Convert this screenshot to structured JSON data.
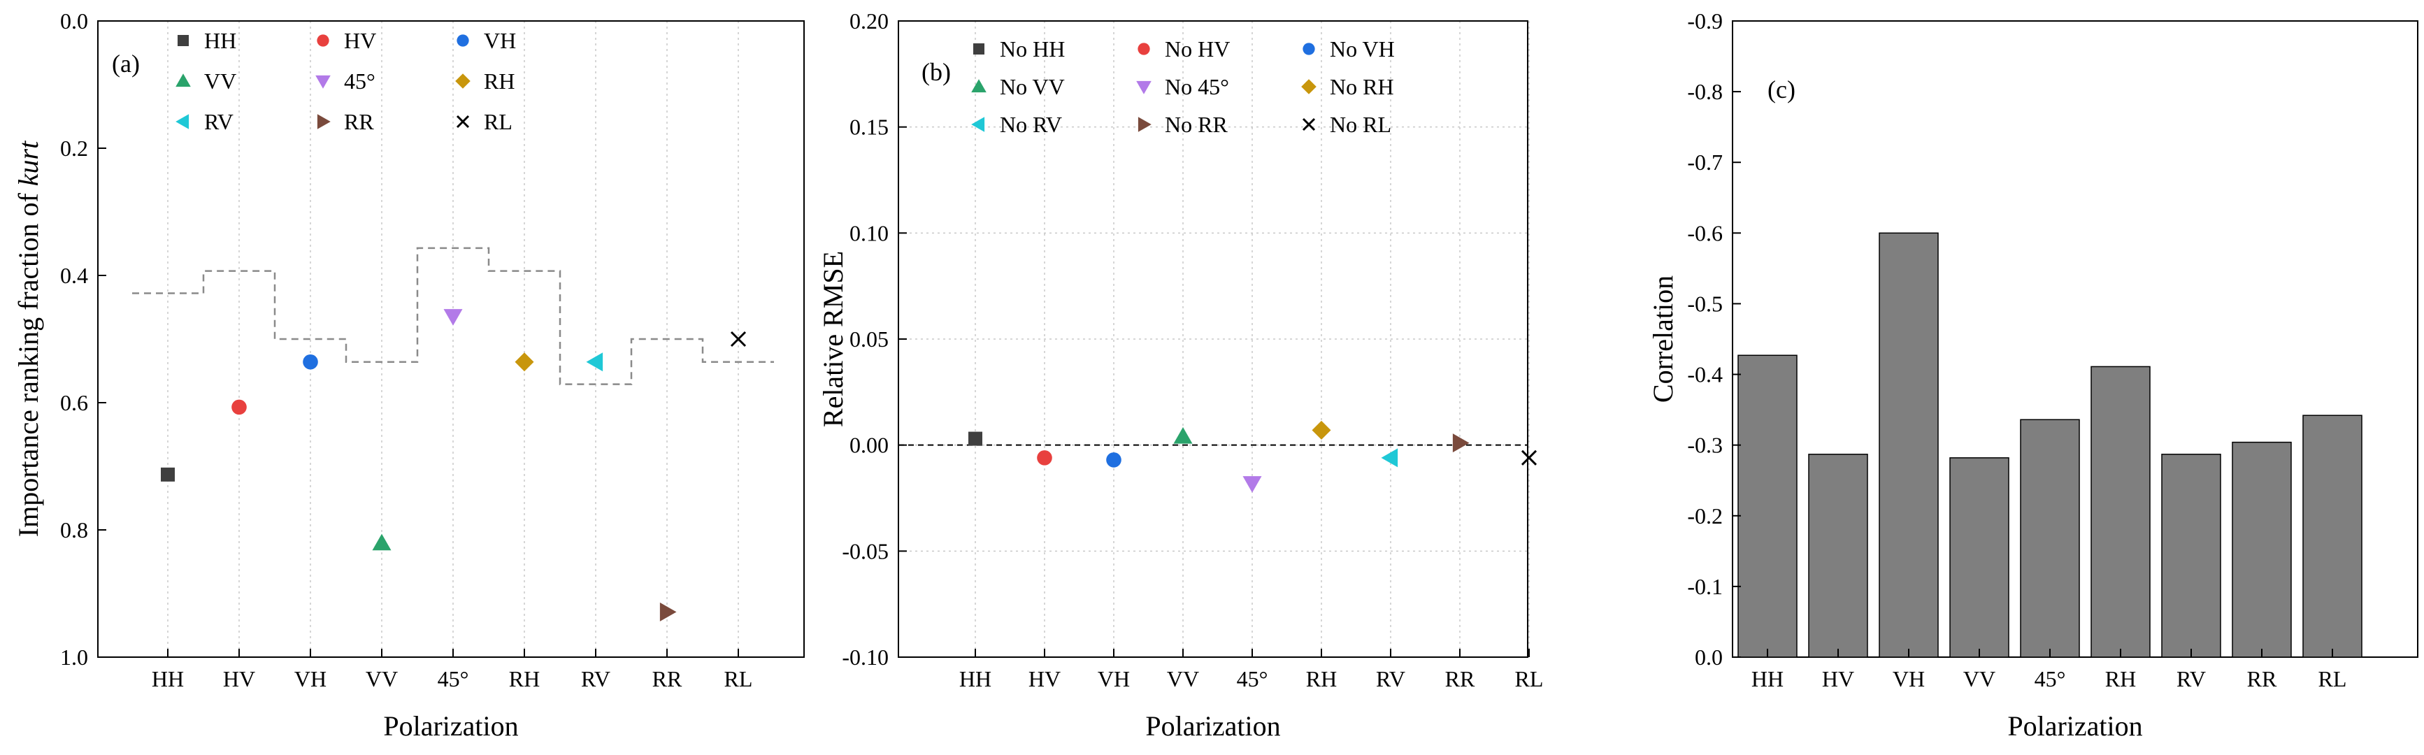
{
  "chart_data": [
    {
      "type": "scatter",
      "panel_label": "(a)",
      "xlabel": "Polarization",
      "ylabel_prefix": "Importance ranking fraction of ",
      "ylabel_italic": "kurt",
      "ylim": [
        0,
        1
      ],
      "y_inverted": true,
      "yticks": [
        "0.0",
        "0.2",
        "0.4",
        "0.6",
        "0.8",
        "1.0"
      ],
      "categories": [
        "HH",
        "HV",
        "VH",
        "VV",
        "45°",
        "RH",
        "RV",
        "RR",
        "RL"
      ],
      "points": [
        {
          "label": "HH",
          "value": 0.713,
          "color": "#3f3f3f",
          "marker": "square"
        },
        {
          "label": "HV",
          "value": 0.607,
          "color": "#e8403e",
          "marker": "circle"
        },
        {
          "label": "VH",
          "value": 0.536,
          "color": "#1f6fe0",
          "marker": "circle"
        },
        {
          "label": "VV",
          "value": 0.821,
          "color": "#2aa36b",
          "marker": "triangle-up"
        },
        {
          "label": "45°",
          "value": 0.464,
          "color": "#b27ae8",
          "marker": "triangle-down"
        },
        {
          "label": "RH",
          "value": 0.536,
          "color": "#c8960c",
          "marker": "diamond"
        },
        {
          "label": "RV",
          "value": 0.536,
          "color": "#1fc8d6",
          "marker": "triangle-left"
        },
        {
          "label": "RR",
          "value": 0.929,
          "color": "#7a4a3c",
          "marker": "triangle-right"
        },
        {
          "label": "RL",
          "value": 0.5,
          "color": "#000000",
          "marker": "x"
        }
      ],
      "step_line": [
        0.428,
        0.393,
        0.5,
        0.536,
        0.357,
        0.393,
        0.571,
        0.5,
        0.536
      ]
    },
    {
      "type": "scatter",
      "panel_label": "(b)",
      "xlabel": "Polarization",
      "ylabel": "Relative RMSE",
      "ylim": [
        -0.1,
        0.2
      ],
      "yticks": [
        "-0.10",
        "-0.05",
        "0.00",
        "0.05",
        "0.10",
        "0.15",
        "0.20"
      ],
      "reference_line": 0,
      "categories": [
        "HH",
        "HV",
        "VH",
        "VV",
        "45°",
        "RH",
        "RV",
        "RR",
        "RL"
      ],
      "points": [
        {
          "label": "No HH",
          "value": 0.003,
          "color": "#3f3f3f",
          "marker": "square"
        },
        {
          "label": "No HV",
          "value": -0.006,
          "color": "#e8403e",
          "marker": "circle"
        },
        {
          "label": "No VH",
          "value": -0.007,
          "color": "#1f6fe0",
          "marker": "circle"
        },
        {
          "label": "No VV",
          "value": 0.004,
          "color": "#2aa36b",
          "marker": "triangle-up"
        },
        {
          "label": "No 45°",
          "value": -0.018,
          "color": "#b27ae8",
          "marker": "triangle-down"
        },
        {
          "label": "No RH",
          "value": 0.007,
          "color": "#c8960c",
          "marker": "diamond"
        },
        {
          "label": "No RV",
          "value": -0.006,
          "color": "#1fc8d6",
          "marker": "triangle-left"
        },
        {
          "label": "No RR",
          "value": 0.001,
          "color": "#7a4a3c",
          "marker": "triangle-right"
        },
        {
          "label": "No RL",
          "value": -0.006,
          "color": "#000000",
          "marker": "x"
        }
      ]
    },
    {
      "type": "bar",
      "panel_label": "(c)",
      "xlabel": "Polarization",
      "ylabel": "Correlation",
      "ylim": [
        0,
        -0.9
      ],
      "yticks": [
        "0.0",
        "-0.1",
        "-0.2",
        "-0.3",
        "-0.4",
        "-0.5",
        "-0.6",
        "-0.7",
        "-0.8",
        "-0.9"
      ],
      "categories": [
        "HH",
        "HV",
        "VH",
        "VV",
        "45°",
        "RH",
        "RV",
        "RR",
        "RL"
      ],
      "values": [
        -0.427,
        -0.287,
        -0.6,
        -0.282,
        -0.336,
        -0.411,
        -0.287,
        -0.304,
        -0.342
      ],
      "bar_color": "#7f7f7f"
    }
  ]
}
